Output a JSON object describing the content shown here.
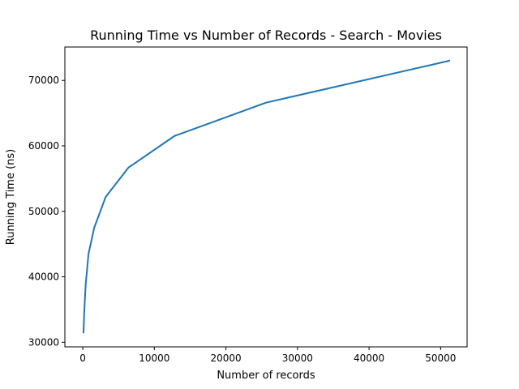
{
  "chart_data": {
    "type": "line",
    "title": "Running Time vs Number of Records - Search - Movies",
    "xlabel": "Number of records",
    "ylabel": "Running Time (ns)",
    "xlim": [
      -2500,
      53700
    ],
    "ylim": [
      29300,
      75100
    ],
    "xticks": [
      0,
      10000,
      20000,
      30000,
      40000,
      50000
    ],
    "yticks": [
      30000,
      40000,
      50000,
      60000,
      70000
    ],
    "grid": false,
    "series": [
      {
        "color": "#1f77b4",
        "x": [
          100,
          200,
          400,
          800,
          1600,
          3200,
          6400,
          12800,
          25600,
          51200
        ],
        "y": [
          31500,
          34500,
          38700,
          43500,
          47500,
          52200,
          56700,
          61500,
          66600,
          73000
        ]
      }
    ]
  }
}
